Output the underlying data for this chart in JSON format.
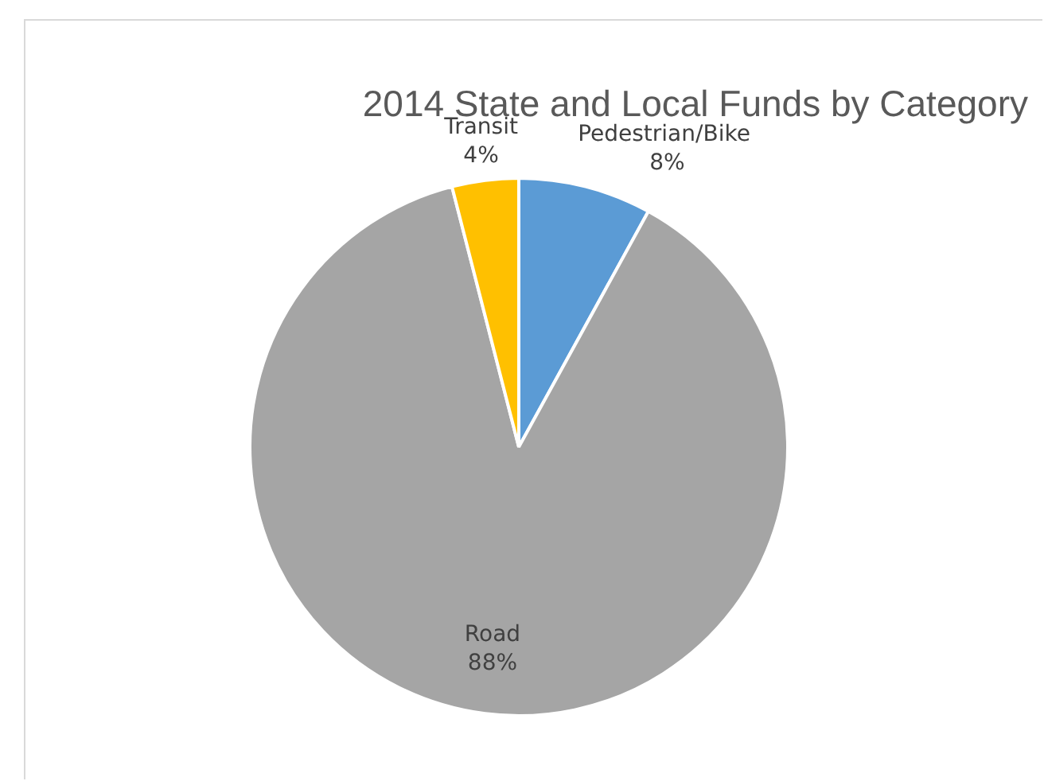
{
  "chart_data": {
    "type": "pie",
    "title": "2014 State and Local Funds by Category",
    "categories": [
      "Pedestrian/Bike",
      "Road",
      "Transit"
    ],
    "values": [
      8,
      88,
      4
    ],
    "value_labels": [
      "8%",
      "88%",
      "4%"
    ],
    "colors": [
      "#5b9bd5",
      "#a5a5a5",
      "#ffc000"
    ]
  }
}
